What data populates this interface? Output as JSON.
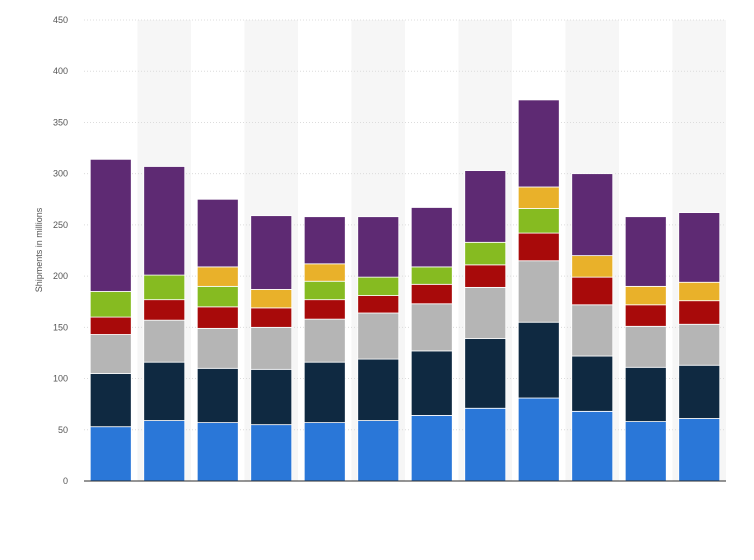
{
  "chart_data": {
    "type": "bar",
    "stacked": true,
    "ylabel": "Shipments in millions",
    "ylim": [
      0,
      450
    ],
    "yticks": [
      0,
      50,
      100,
      150,
      200,
      250,
      300,
      350,
      400,
      450
    ],
    "categories": [
      "",
      "",
      "",
      "",
      "",
      "",
      "",
      "",
      "",
      "",
      "",
      ""
    ],
    "grid": true,
    "alternating_column_shading": true,
    "legend": "none",
    "series": [
      {
        "color": "#2a77d8",
        "values": [
          53,
          59,
          57,
          55,
          57,
          59,
          64,
          71,
          81,
          68,
          58,
          61
        ]
      },
      {
        "color": "#0f2941",
        "values": [
          52,
          57,
          53,
          54,
          59,
          60,
          63,
          68,
          74,
          54,
          53,
          52
        ]
      },
      {
        "color": "#b5b5b5",
        "values": [
          38,
          41,
          39,
          41,
          42,
          45,
          46,
          50,
          60,
          50,
          40,
          40
        ]
      },
      {
        "color": "#a80a0a",
        "values": [
          17,
          20,
          21,
          19,
          19,
          17,
          19,
          22,
          27,
          27,
          21,
          23
        ]
      },
      {
        "color": "#86bb21",
        "values": [
          25,
          24,
          20,
          0,
          18,
          18,
          17,
          22,
          24,
          0,
          0,
          0
        ]
      },
      {
        "color": "#e9b12a",
        "values": [
          0,
          0,
          19,
          18,
          17,
          0,
          0,
          0,
          21,
          21,
          18,
          18
        ]
      },
      {
        "color": "#5e2a73",
        "values": [
          129,
          106,
          66,
          72,
          46,
          59,
          58,
          70,
          85,
          80,
          68,
          68
        ]
      }
    ]
  }
}
